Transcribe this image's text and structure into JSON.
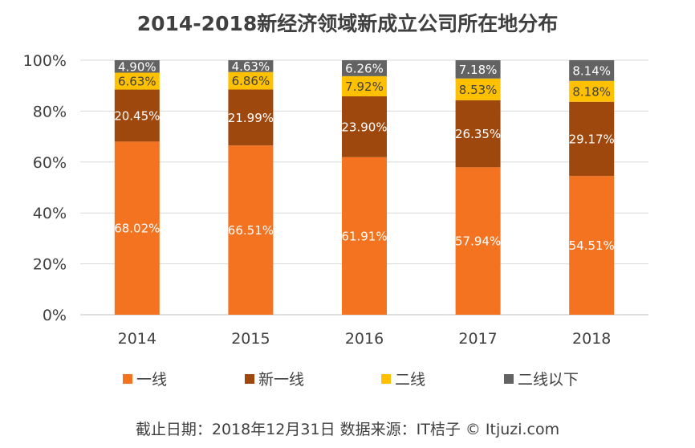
{
  "chart_data": {
    "type": "bar",
    "stacked": true,
    "title": "2014-2018新经济领域新成立公司所在地分布",
    "categories": [
      "2014",
      "2015",
      "2016",
      "2017",
      "2018"
    ],
    "series": [
      {
        "name": "一线",
        "color": "#F47320",
        "values": [
          68.02,
          66.51,
          61.91,
          57.94,
          54.51
        ],
        "labels": [
          "68.02%",
          "66.51%",
          "61.91%",
          "57.94%",
          "54.51%"
        ],
        "label_color": "#ffffff"
      },
      {
        "name": "新一线",
        "color": "#9E480E",
        "values": [
          20.45,
          21.99,
          23.9,
          26.35,
          29.17
        ],
        "labels": [
          "20.45%",
          "21.99%",
          "23.90%",
          "26.35%",
          "29.17%"
        ],
        "label_color": "#ffffff"
      },
      {
        "name": "二线",
        "color": "#FFC000",
        "values": [
          6.63,
          6.86,
          7.92,
          8.53,
          8.18
        ],
        "labels": [
          "6.63%",
          "6.86%",
          "7.92%",
          "8.53%",
          "8.18%"
        ],
        "label_color": "#404040"
      },
      {
        "name": "二线以下",
        "color": "#636363",
        "values": [
          4.9,
          4.63,
          6.26,
          7.18,
          8.14
        ],
        "labels": [
          "4.90%",
          "4.63%",
          "6.26%",
          "7.18%",
          "8.14%"
        ],
        "label_color": "#ffffff"
      }
    ],
    "y_ticks": [
      "0%",
      "20%",
      "40%",
      "60%",
      "80%",
      "100%"
    ],
    "ylim": [
      0,
      100
    ],
    "grid": true,
    "legend_position": "bottom",
    "xlabel": "",
    "ylabel": ""
  },
  "footer": "截止日期：2018年12月31日    数据来源：IT桔子 © Itjuzi.com"
}
